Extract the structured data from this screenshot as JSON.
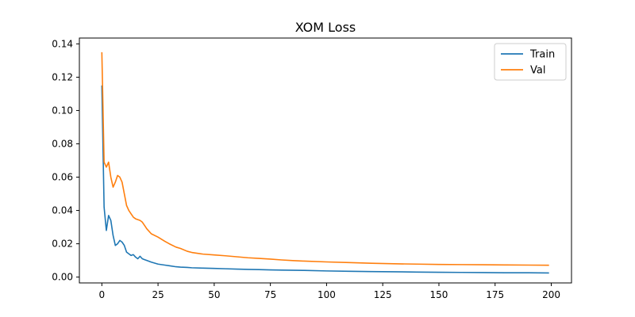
{
  "chart_data": {
    "type": "line",
    "title": "XOM Loss",
    "xlabel": "",
    "ylabel": "",
    "xlim": [
      -10,
      209
    ],
    "ylim": [
      -0.0035,
      0.1435
    ],
    "xticks": [
      0,
      25,
      50,
      75,
      100,
      125,
      150,
      175,
      200
    ],
    "xtick_labels": [
      "0",
      "25",
      "50",
      "75",
      "100",
      "125",
      "150",
      "175",
      "200"
    ],
    "yticks": [
      0.0,
      0.02,
      0.04,
      0.06,
      0.08,
      0.1,
      0.12,
      0.14
    ],
    "ytick_labels": [
      "0.00",
      "0.02",
      "0.04",
      "0.06",
      "0.08",
      "0.10",
      "0.12",
      "0.14"
    ],
    "grid": false,
    "legend": "top-right",
    "series": [
      {
        "name": "Train",
        "color": "#1f77b4",
        "points": [
          [
            0,
            0.115
          ],
          [
            1,
            0.042
          ],
          [
            2,
            0.028
          ],
          [
            3,
            0.037
          ],
          [
            4,
            0.034
          ],
          [
            5,
            0.025
          ],
          [
            6,
            0.019
          ],
          [
            7,
            0.02
          ],
          [
            8,
            0.022
          ],
          [
            9,
            0.021
          ],
          [
            10,
            0.019
          ],
          [
            11,
            0.015
          ],
          [
            12,
            0.014
          ],
          [
            13,
            0.013
          ],
          [
            14,
            0.0135
          ],
          [
            15,
            0.012
          ],
          [
            16,
            0.011
          ],
          [
            17,
            0.0125
          ],
          [
            18,
            0.011
          ],
          [
            19,
            0.0105
          ],
          [
            20,
            0.01
          ],
          [
            22,
            0.009
          ],
          [
            25,
            0.0078
          ],
          [
            28,
            0.0072
          ],
          [
            30,
            0.0068
          ],
          [
            33,
            0.0062
          ],
          [
            35,
            0.006
          ],
          [
            38,
            0.0058
          ],
          [
            40,
            0.0056
          ],
          [
            45,
            0.0054
          ],
          [
            50,
            0.0052
          ],
          [
            55,
            0.005
          ],
          [
            60,
            0.0048
          ],
          [
            65,
            0.0046
          ],
          [
            70,
            0.0045
          ],
          [
            75,
            0.0043
          ],
          [
            80,
            0.0042
          ],
          [
            90,
            0.004
          ],
          [
            100,
            0.0037
          ],
          [
            110,
            0.0035
          ],
          [
            120,
            0.0033
          ],
          [
            130,
            0.0032
          ],
          [
            140,
            0.003
          ],
          [
            150,
            0.0029
          ],
          [
            160,
            0.0028
          ],
          [
            170,
            0.0027
          ],
          [
            180,
            0.0026
          ],
          [
            190,
            0.0026
          ],
          [
            199,
            0.0025
          ]
        ]
      },
      {
        "name": "Val",
        "color": "#ff7f0e",
        "points": [
          [
            0,
            0.135
          ],
          [
            1,
            0.069
          ],
          [
            2,
            0.066
          ],
          [
            3,
            0.069
          ],
          [
            4,
            0.06
          ],
          [
            5,
            0.054
          ],
          [
            6,
            0.057
          ],
          [
            7,
            0.061
          ],
          [
            8,
            0.06
          ],
          [
            9,
            0.057
          ],
          [
            10,
            0.05
          ],
          [
            11,
            0.043
          ],
          [
            12,
            0.04
          ],
          [
            13,
            0.038
          ],
          [
            14,
            0.036
          ],
          [
            15,
            0.035
          ],
          [
            16,
            0.0345
          ],
          [
            17,
            0.034
          ],
          [
            18,
            0.033
          ],
          [
            19,
            0.031
          ],
          [
            20,
            0.029
          ],
          [
            22,
            0.026
          ],
          [
            25,
            0.024
          ],
          [
            28,
            0.0215
          ],
          [
            30,
            0.02
          ],
          [
            33,
            0.018
          ],
          [
            35,
            0.0172
          ],
          [
            38,
            0.0155
          ],
          [
            40,
            0.0148
          ],
          [
            45,
            0.0138
          ],
          [
            50,
            0.0133
          ],
          [
            55,
            0.0128
          ],
          [
            60,
            0.0122
          ],
          [
            65,
            0.0116
          ],
          [
            70,
            0.0112
          ],
          [
            75,
            0.0108
          ],
          [
            80,
            0.0103
          ],
          [
            85,
            0.0099
          ],
          [
            90,
            0.0096
          ],
          [
            100,
            0.0091
          ],
          [
            110,
            0.0087
          ],
          [
            120,
            0.0083
          ],
          [
            130,
            0.008
          ],
          [
            140,
            0.0078
          ],
          [
            150,
            0.0076
          ],
          [
            160,
            0.0075
          ],
          [
            170,
            0.0074
          ],
          [
            180,
            0.0073
          ],
          [
            190,
            0.0072
          ],
          [
            199,
            0.0071
          ]
        ]
      }
    ]
  }
}
